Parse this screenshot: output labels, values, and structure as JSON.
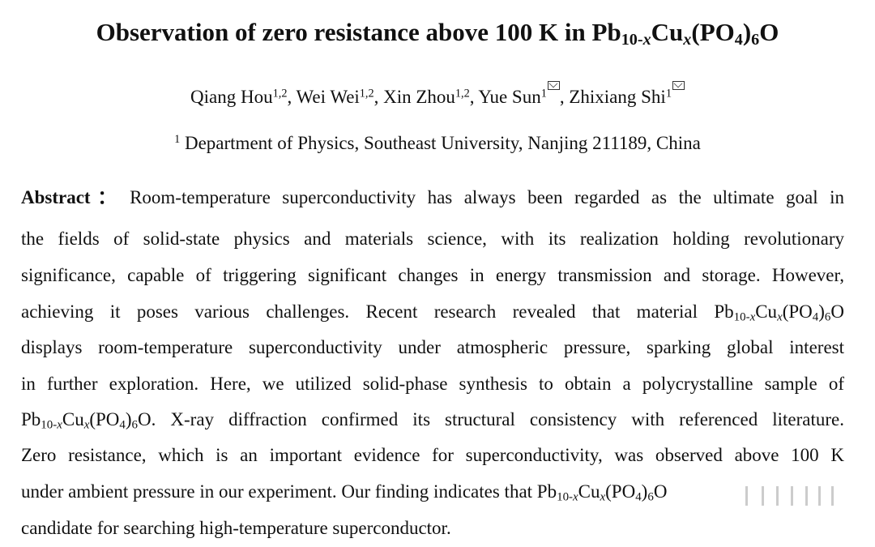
{
  "title": [
    "Observation of zero resistance above 100 K in Pb",
    "10-",
    "x",
    "Cu",
    "x",
    "(PO",
    "4",
    ")",
    "6",
    "O"
  ],
  "authors": [
    "Qiang Hou",
    "1,2",
    ", Wei Wei",
    "1,2",
    ", Xin Zhou",
    "1,2",
    ", Yue Sun",
    "1",
    ", Zhixiang Shi",
    "1"
  ],
  "affiliation": [
    "1",
    "Department of Physics, Southeast University, Nanjing 211189, China"
  ],
  "abstract": {
    "label": "Abstract：",
    "lines": [
      [
        "Room-temperature superconductivity has always been regarded as the ultimate goal in"
      ],
      [
        "the fields of solid-state physics and materials science, with its realization holding revolutionary"
      ],
      [
        "significance, capable of triggering significant changes in energy transmission and storage. However,"
      ],
      [
        "achieving it poses various challenges. Recent research revealed that material Pb",
        "10-",
        "x",
        "Cu",
        "x",
        "(PO",
        "4",
        ")",
        "6",
        "O"
      ],
      [
        "displays room-temperature superconductivity under atmospheric pressure, sparking global interest"
      ],
      [
        "in further exploration. Here, we utilized solid-phase synthesis to obtain a polycrystalline sample of"
      ],
      [
        "Pb",
        "10-",
        "x",
        "Cu",
        "x",
        "(PO",
        "4",
        ")",
        "6",
        "O. X-ray diffraction confirmed its structural consistency with referenced literature."
      ],
      [
        "Zero resistance, which is an important evidence for superconductivity, was observed above 100 K"
      ],
      [
        "under ambient pressure in our experiment. Our finding indicates that Pb",
        "10-",
        "x",
        "Cu",
        "x",
        "(PO",
        "4",
        ")",
        "6",
        "O"
      ],
      [
        "candidate for searching high-temperature superconductor."
      ]
    ]
  }
}
